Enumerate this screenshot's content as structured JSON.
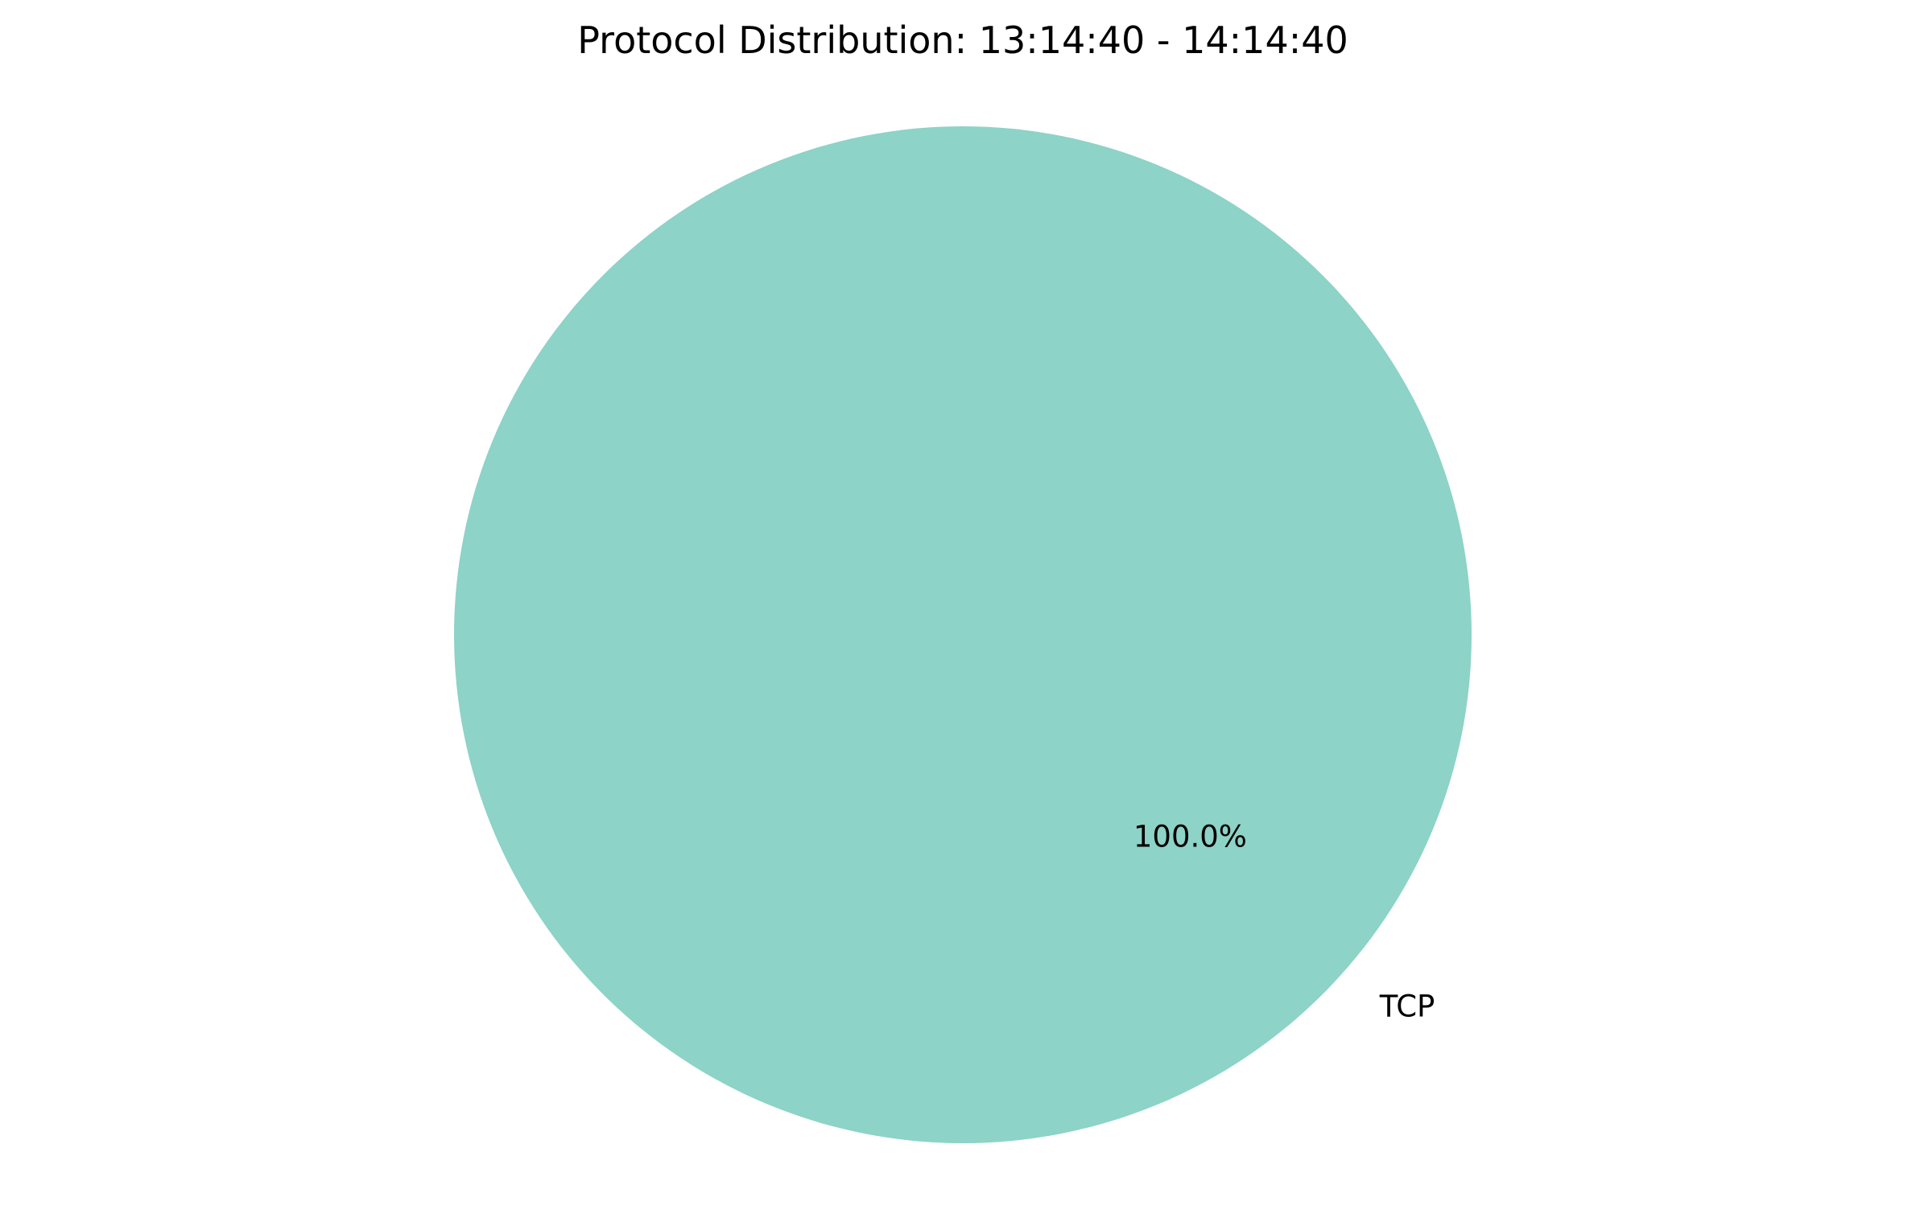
{
  "chart_data": {
    "type": "pie",
    "title": "Protocol Distribution: 13:14:40 - 14:14:40",
    "slices": [
      {
        "label": "TCP",
        "value": 100.0,
        "pct_label": "100.0%",
        "color": "#8dd3c7"
      }
    ],
    "legend": "none"
  }
}
